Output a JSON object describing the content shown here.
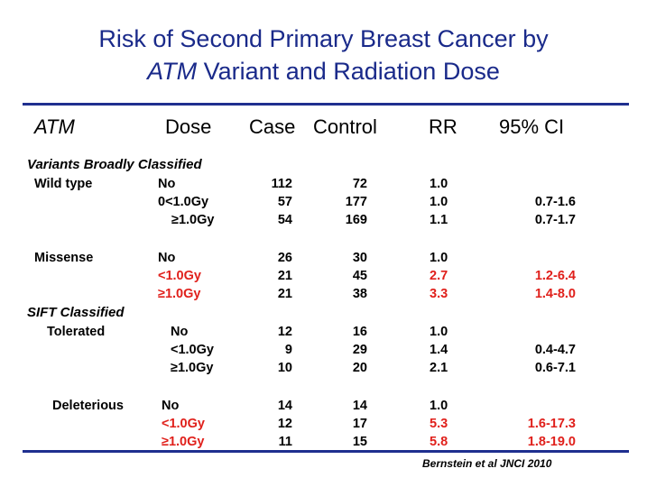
{
  "title": {
    "line1": "Risk of Second Primary Breast Cancer by",
    "line2_italic": "ATM",
    "line2_rest": " Variant and Radiation Dose"
  },
  "headers": {
    "atm": "ATM",
    "dose": "Dose",
    "case": "Case",
    "control": "Control",
    "rr": "RR",
    "ci": "95% CI"
  },
  "sections": {
    "broad": "Variants Broadly Classified",
    "sift": "SIFT Classified"
  },
  "rows": [
    {
      "group": "Wild type",
      "dose": "No",
      "case": "112",
      "control": "72",
      "rr": "1.0",
      "ci": ""
    },
    {
      "group": "",
      "dose": "0<1.0Gy",
      "case": "57",
      "control": "177",
      "rr": "1.0",
      "ci": "0.7-1.6"
    },
    {
      "group": "",
      "dose": "≥1.0Gy",
      "case": "54",
      "control": "169",
      "rr": "1.1",
      "ci": "0.7-1.7"
    },
    {
      "group": "Missense",
      "dose": "No",
      "case": "26",
      "control": "30",
      "rr": "1.0",
      "ci": ""
    },
    {
      "group": "",
      "dose": "<1.0Gy",
      "case": "21",
      "control": "45",
      "rr": "2.7",
      "ci": "1.2-6.4"
    },
    {
      "group": "",
      "dose": "≥1.0Gy",
      "case": "21",
      "control": "38",
      "rr": "3.3",
      "ci": "1.4-8.0"
    },
    {
      "group": "Tolerated",
      "dose": "No",
      "case": "12",
      "control": "16",
      "rr": "1.0",
      "ci": ""
    },
    {
      "group": "",
      "dose": "<1.0Gy",
      "case": "9",
      "control": "29",
      "rr": "1.4",
      "ci": "0.4-4.7"
    },
    {
      "group": "",
      "dose": "≥1.0Gy",
      "case": "10",
      "control": "20",
      "rr": "2.1",
      "ci": "0.6-7.1"
    },
    {
      "group": "Deleterious",
      "dose": "No",
      "case": "14",
      "control": "14",
      "rr": "1.0",
      "ci": ""
    },
    {
      "group": "",
      "dose": "<1.0Gy",
      "case": "12",
      "control": "17",
      "rr": "5.3",
      "ci": "1.6-17.3"
    },
    {
      "group": "",
      "dose": "≥1.0Gy",
      "case": "11",
      "control": "15",
      "rr": "5.8",
      "ci": "1.8-19.0"
    }
  ],
  "citation": "Bernstein et al JNCI 2010",
  "colors": {
    "title": "#1a2a8a",
    "rule": "#1f2f8f",
    "highlight": "#e0201b"
  }
}
